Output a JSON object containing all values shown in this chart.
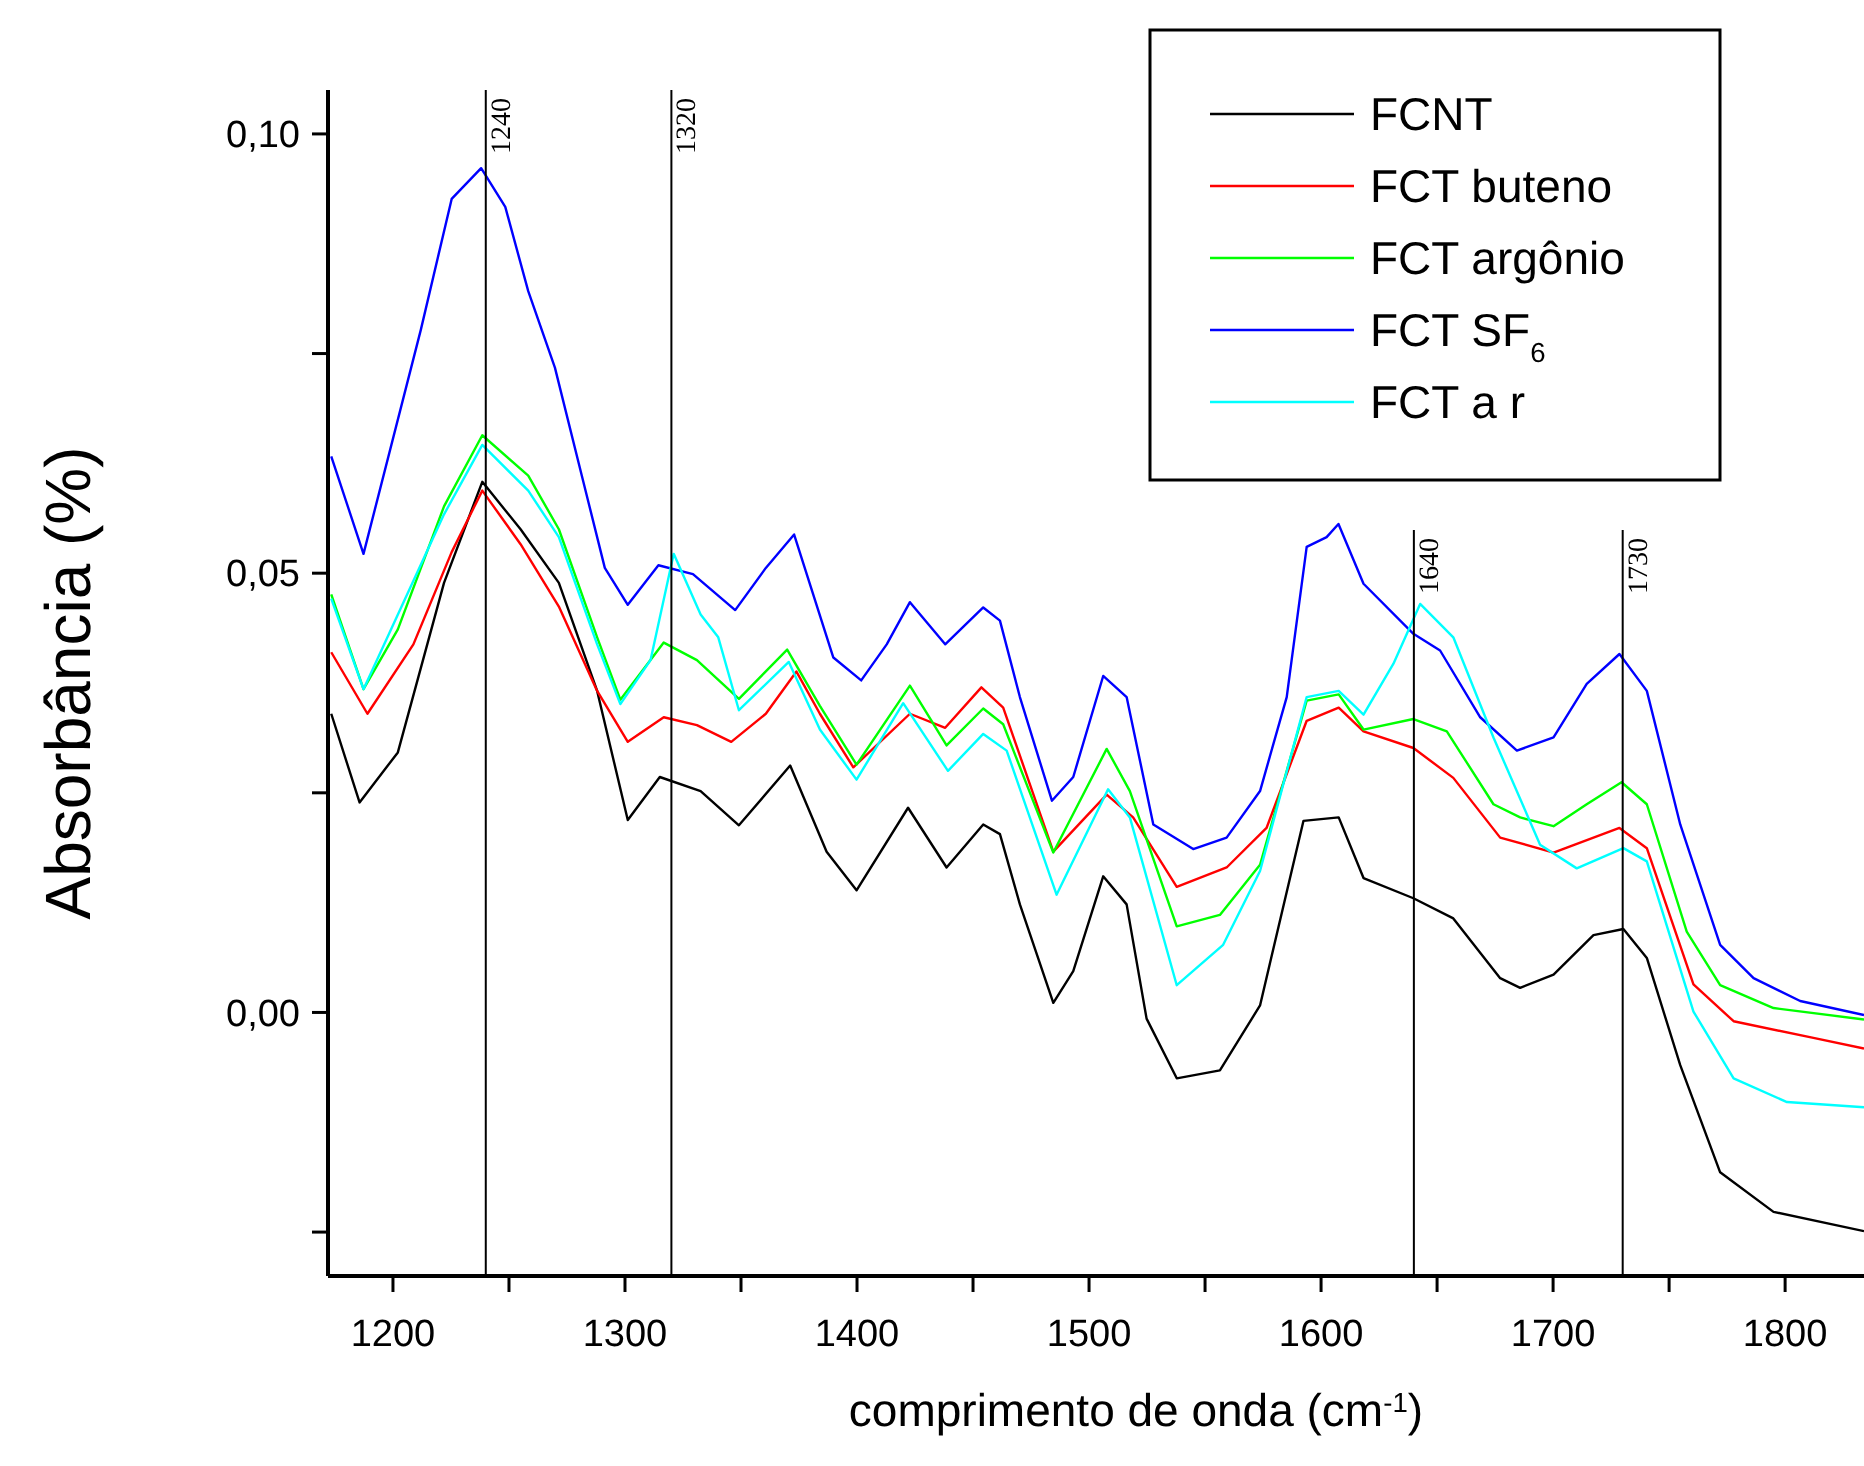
{
  "chart_data": {
    "type": "line",
    "xlabel": "comprimento de onda (cm$^{-1}$)",
    "ylabel": "Absorbância (%)",
    "legend": "top right",
    "xlim": [
      1172,
      1834
    ],
    "ylim": [
      -0.03,
      0.105
    ],
    "xticks": [
      1200,
      {
        "value": 1250,
        "label": null
      },
      1300,
      {
        "value": 1350,
        "label": null
      },
      1400,
      {
        "value": 1450,
        "label": null
      },
      1500,
      {
        "value": 1550,
        "label": null
      },
      1600,
      {
        "value": 1650,
        "label": null
      },
      1700,
      {
        "value": 1750,
        "label": null
      },
      1800
    ],
    "yticks": [
      {
        "value": -0.025,
        "label": null
      },
      {
        "value": 0,
        "label": "0,00"
      },
      {
        "value": 0.025,
        "label": null
      },
      {
        "value": 0.05,
        "label": "0,05"
      },
      {
        "value": 0.075,
        "label": null
      },
      {
        "value": 0.1,
        "label": "0,10"
      }
    ],
    "ref_lines": [
      {
        "axis": "x",
        "value": 1240,
        "label": "1240",
        "color": "#000000"
      },
      {
        "axis": "x",
        "value": 1320,
        "label": "1320",
        "color": "#000000"
      },
      {
        "axis": "x",
        "value": 1640,
        "label": "1640",
        "color": "#000000"
      },
      {
        "axis": "x",
        "value": 1730,
        "label": "1730",
        "color": "#000000"
      }
    ],
    "series": [
      {
        "name": "FCNT",
        "color": "#000000",
        "x": [
          1173.4,
          1185.6,
          1202.1,
          1222,
          1238.5,
          1255,
          1271.5,
          1288,
          1301.2,
          1315,
          1332.6,
          1349.1,
          1371.2,
          1386.9,
          1399.8,
          1422,
          1438.6,
          1454.4,
          1461.6,
          1470.2,
          1484.6,
          1493.2,
          1506.1,
          1516.2,
          1524.8,
          1537.8,
          1556.4,
          1573.7,
          1592.4,
          1607.6,
          1618.3,
          1639.8,
          1657,
          1677.2,
          1685.8,
          1700.2,
          1717.4,
          1730.3,
          1740.4,
          1754.8,
          1772,
          1795,
          1834
        ],
        "values": [
          0.034,
          0.0239,
          0.0296,
          0.0489,
          0.0604,
          0.055,
          0.0489,
          0.0366,
          0.0219,
          0.0268,
          0.0252,
          0.0213,
          0.0281,
          0.0183,
          0.0139,
          0.0233,
          0.0165,
          0.0214,
          0.0203,
          0.0123,
          0.0011,
          0.0047,
          0.0155,
          0.0123,
          -0.0007,
          -0.0075,
          -0.0066,
          0.0008,
          0.0218,
          0.0222,
          0.0153,
          0.013,
          0.0107,
          0.0039,
          0.0028,
          0.0043,
          0.0088,
          0.0095,
          0.0062,
          -0.006,
          -0.0182,
          -0.0227,
          -0.0249
        ]
      },
      {
        "name": "FCT buteno",
        "color": "#ff0000",
        "x": [
          1173.4,
          1189,
          1208.8,
          1225.3,
          1238.5,
          1255,
          1271.5,
          1288,
          1301.2,
          1316.7,
          1331,
          1345.8,
          1360.7,
          1373.9,
          1384,
          1398.4,
          1422.8,
          1438,
          1453.6,
          1463,
          1484.6,
          1507.6,
          1519,
          1537.8,
          1559.3,
          1576.5,
          1593.8,
          1607.6,
          1618.3,
          1639.8,
          1657,
          1677.2,
          1700.2,
          1728.6,
          1740.4,
          1760.5,
          1777.8,
          1812.2,
          1834
        ],
        "values": [
          0.041,
          0.034,
          0.0419,
          0.0524,
          0.0594,
          0.0533,
          0.0462,
          0.0366,
          0.0308,
          0.0336,
          0.0327,
          0.0308,
          0.034,
          0.0388,
          0.034,
          0.0279,
          0.034,
          0.0324,
          0.037,
          0.0347,
          0.0183,
          0.0248,
          0.0222,
          0.0143,
          0.0165,
          0.021,
          0.0332,
          0.0347,
          0.032,
          0.0301,
          0.0267,
          0.0199,
          0.0182,
          0.021,
          0.0187,
          0.0032,
          -0.001,
          -0.0029,
          -0.0041
        ]
      },
      {
        "name": "FCT argônio",
        "color": "#00ff00",
        "x": [
          1173.4,
          1187.3,
          1202.1,
          1222,
          1238.5,
          1258.3,
          1271.5,
          1288,
          1298,
          1316.7,
          1331,
          1349.1,
          1369.9,
          1384,
          1399.8,
          1422.8,
          1438.6,
          1454.4,
          1463,
          1484.6,
          1507.6,
          1517.6,
          1537.8,
          1556.4,
          1573.7,
          1593.8,
          1607.6,
          1618.3,
          1639.8,
          1654.2,
          1674.3,
          1685.8,
          1700.2,
          1714.5,
          1729.5,
          1740.4,
          1757.6,
          1772,
          1795,
          1834
        ],
        "values": [
          0.0476,
          0.0368,
          0.0436,
          0.0576,
          0.0657,
          0.0611,
          0.055,
          0.0427,
          0.0356,
          0.0421,
          0.0401,
          0.0357,
          0.0413,
          0.0349,
          0.0282,
          0.0372,
          0.0304,
          0.0346,
          0.0328,
          0.0182,
          0.03,
          0.0252,
          0.0098,
          0.0111,
          0.0168,
          0.0355,
          0.0362,
          0.0322,
          0.0334,
          0.032,
          0.0237,
          0.0222,
          0.0212,
          0.0237,
          0.0262,
          0.0237,
          0.0092,
          0.0031,
          0.0005,
          -0.0008
        ]
      },
      {
        "name": "FCT SF$_{6}$",
        "color": "#0000ff",
        "x": [
          1173.4,
          1187.3,
          1212,
          1225.3,
          1238,
          1248.4,
          1258.3,
          1269.8,
          1281.4,
          1291.3,
          1301.2,
          1314.4,
          1329.3,
          1347.5,
          1360.7,
          1372.9,
          1389.8,
          1401.8,
          1412.8,
          1422.8,
          1438,
          1454.4,
          1461.6,
          1470.2,
          1484,
          1493.2,
          1506.1,
          1516.2,
          1527.7,
          1544.9,
          1559.3,
          1573.7,
          1585.2,
          1593.8,
          1602.4,
          1607.5,
          1618.3,
          1639.8,
          1651.3,
          1668.6,
          1684.4,
          1700.2,
          1714.5,
          1728.6,
          1740.4,
          1754.8,
          1772,
          1786.4,
          1806.5,
          1834
        ],
        "values": [
          0.0633,
          0.0522,
          0.0777,
          0.0926,
          0.0961,
          0.0917,
          0.0821,
          0.0734,
          0.0611,
          0.0506,
          0.0464,
          0.0509,
          0.0499,
          0.0458,
          0.0506,
          0.0544,
          0.0404,
          0.0378,
          0.0419,
          0.0467,
          0.0419,
          0.0461,
          0.0446,
          0.0359,
          0.0241,
          0.0268,
          0.0383,
          0.0359,
          0.0214,
          0.0186,
          0.0199,
          0.0252,
          0.0359,
          0.053,
          0.0541,
          0.0556,
          0.0488,
          0.0431,
          0.0412,
          0.0336,
          0.0298,
          0.0313,
          0.0374,
          0.0408,
          0.0366,
          0.0214,
          0.0077,
          0.0039,
          0.0013,
          -0.0003
        ]
      },
      {
        "name": "FCT a r",
        "color": "#00ffff",
        "x": [
          1173.4,
          1187.3,
          1222,
          1238.5,
          1258.3,
          1271.5,
          1288,
          1298,
          1311,
          1321,
          1332.6,
          1340.2,
          1349.1,
          1370.6,
          1384,
          1399.8,
          1419.9,
          1439.2,
          1454.4,
          1464.5,
          1486,
          1508.2,
          1517.6,
          1537.8,
          1557.8,
          1573.7,
          1593.8,
          1607.6,
          1618.3,
          1631.2,
          1642.7,
          1657,
          1674.3,
          1694.4,
          1710.2,
          1730.3,
          1740.4,
          1760.5,
          1777.8,
          1800.8,
          1834
        ],
        "values": [
          0.0471,
          0.0368,
          0.0567,
          0.0646,
          0.0594,
          0.0541,
          0.0419,
          0.0351,
          0.0401,
          0.0522,
          0.0453,
          0.0427,
          0.0344,
          0.0399,
          0.0322,
          0.0265,
          0.0352,
          0.0275,
          0.0317,
          0.0298,
          0.0134,
          0.0254,
          0.0222,
          0.0031,
          0.0077,
          0.0161,
          0.0359,
          0.0366,
          0.0339,
          0.0397,
          0.0465,
          0.0427,
          0.0313,
          0.0191,
          0.0164,
          0.0187,
          0.0172,
          0.0001,
          -0.0075,
          -0.0102,
          -0.0108
        ]
      }
    ]
  }
}
